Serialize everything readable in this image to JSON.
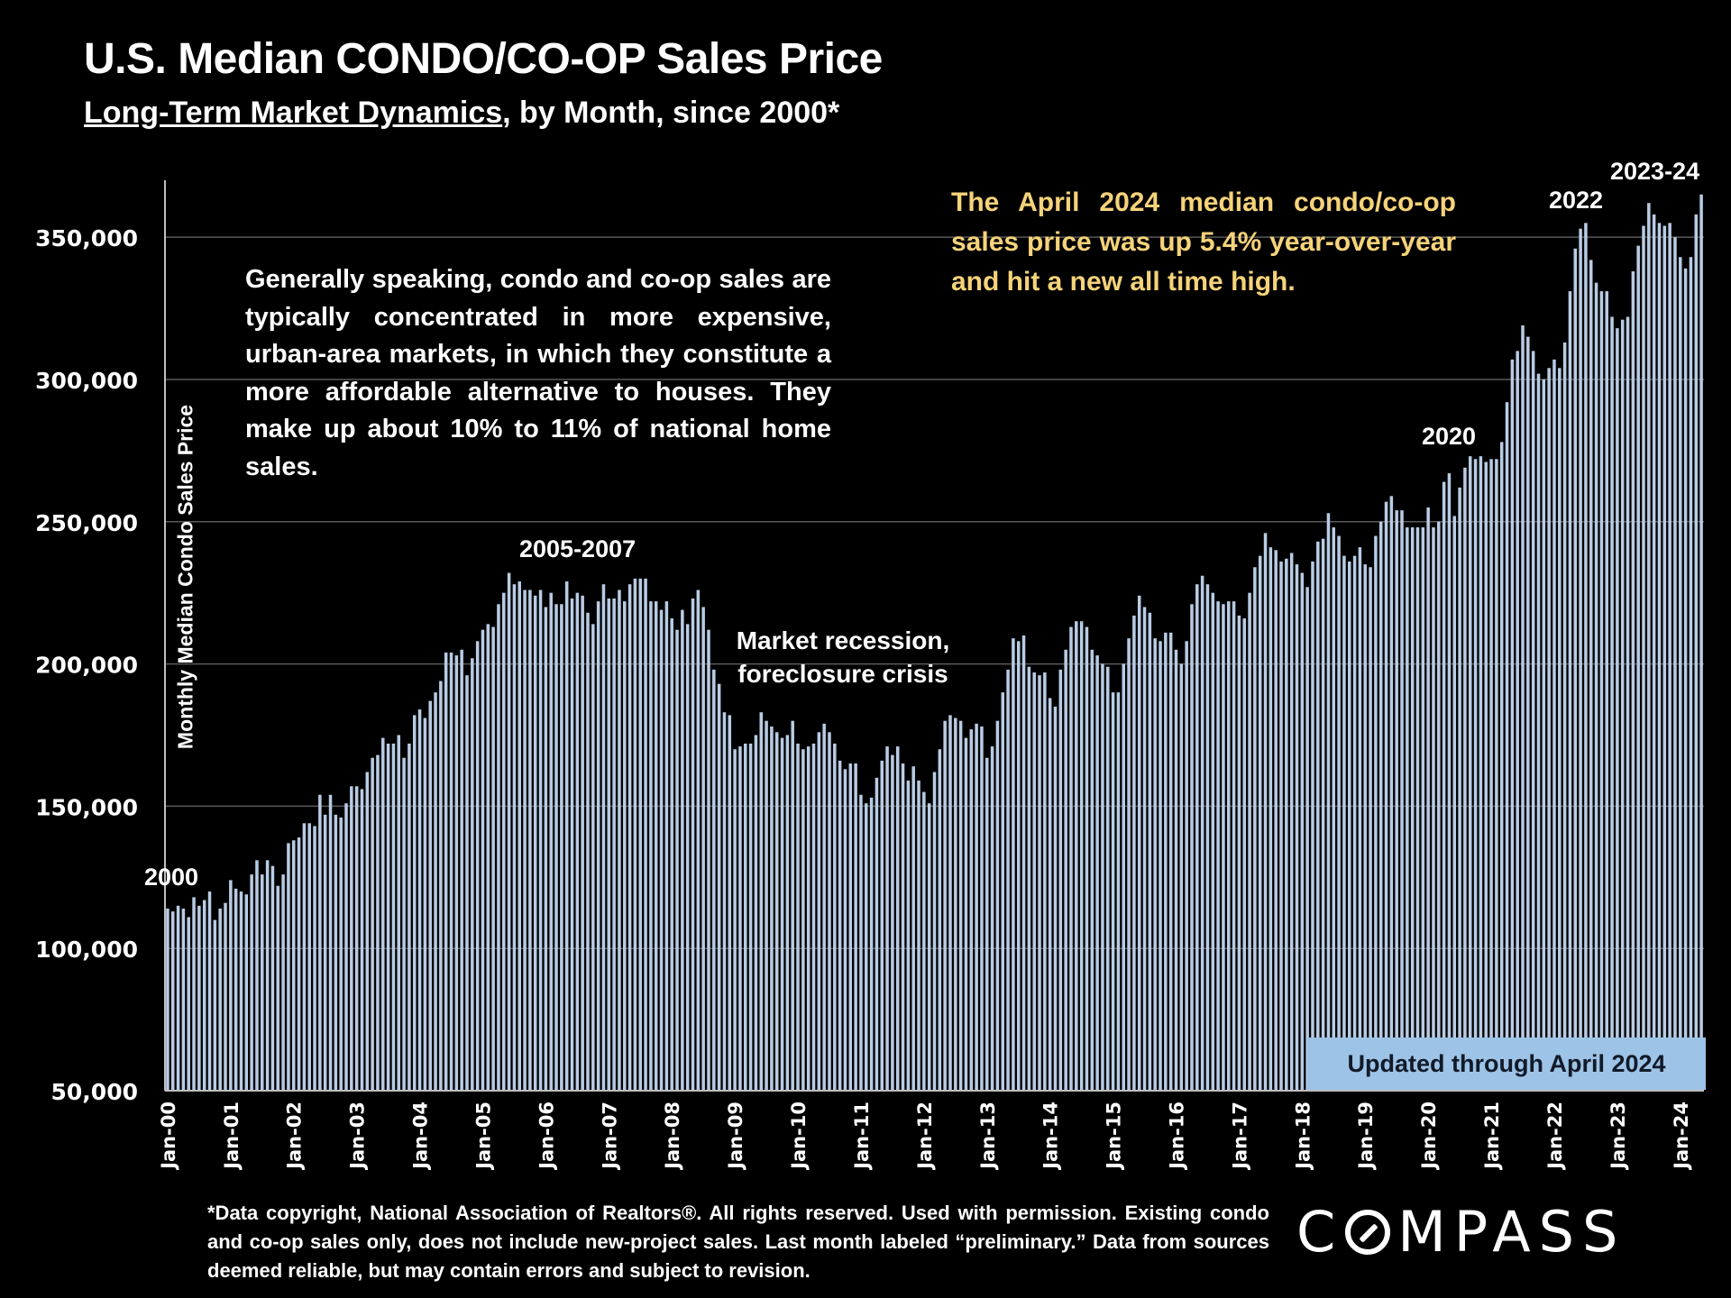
{
  "header": {
    "title": "U.S. Median CONDO/CO-OP Sales Price",
    "subtitle_underlined": "Long-Term Market Dynamics",
    "subtitle_rest": ", by Month, since 2000*"
  },
  "note": "Generally speaking, condo and co-op sales are typically concentrated in more expensive, urban-area markets, in which they constitute a more affordable alternative to houses. They make up about 10% to 11% of national home sales.",
  "callout": "The April 2024 median condo/co-op sales price was up 5.4% year-over-year and hit a new all time high.",
  "badge": "Updated through April 2024",
  "footnote": "*Data copyright, National Association of Realtors®. All rights reserved. Used with permission. Existing condo and co-op sales only, does  not include new-project sales. Last month labeled “preliminary.” Data from sources deemed reliable, but may contain errors and subject to revision.",
  "logo": {
    "before": "C",
    "after": "MPASS"
  },
  "colors": {
    "bar": "#b8cce4",
    "callout": "#f5d37a",
    "badge": "#9dc3e6",
    "grid": "#595959"
  },
  "chart_data": {
    "type": "bar",
    "title": "U.S. Median CONDO/CO-OP Sales Price",
    "xlabel": "",
    "ylabel": "Monthly Median Condo Sales Price",
    "ylim": [
      50000,
      370000
    ],
    "yticks": [
      "50,000",
      "100,000",
      "150,000",
      "200,000",
      "250,000",
      "300,000",
      "350,000"
    ],
    "ytick_values": [
      50000,
      100000,
      150000,
      200000,
      250000,
      300000,
      350000
    ],
    "grid": true,
    "start": "Jan-2000",
    "end": "Apr-2024",
    "xtick_labels": [
      "Jan-00",
      "Jan-01",
      "Jan-02",
      "Jan-03",
      "Jan-04",
      "Jan-05",
      "Jan-06",
      "Jan-07",
      "Jan-08",
      "Jan-09",
      "Jan-10",
      "Jan-11",
      "Jan-12",
      "Jan-13",
      "Jan-14",
      "Jan-15",
      "Jan-16",
      "Jan-17",
      "Jan-18",
      "Jan-19",
      "Jan-20",
      "Jan-21",
      "Jan-22",
      "Jan-23",
      "Jan-24"
    ],
    "annotations": [
      {
        "text": "2000",
        "month_index": 0
      },
      {
        "text": "2005-2007",
        "month_index": 76
      },
      {
        "text": "Market recession,",
        "month_index": 119
      },
      {
        "text": "foreclosure crisis",
        "month_index": 119
      },
      {
        "text": "2020",
        "month_index": 238
      },
      {
        "text": "2022",
        "month_index": 270
      },
      {
        "text": "2023-24",
        "month_index": 288
      }
    ],
    "values": [
      114000,
      113000,
      115000,
      114000,
      111000,
      118000,
      115000,
      117000,
      120000,
      110000,
      114000,
      116000,
      124000,
      121000,
      120000,
      119000,
      126000,
      131000,
      126000,
      131000,
      129000,
      122000,
      126000,
      137000,
      138000,
      139000,
      144000,
      144000,
      143000,
      154000,
      147000,
      154000,
      147000,
      146000,
      151000,
      157000,
      157000,
      156000,
      162000,
      167000,
      168000,
      174000,
      172000,
      172000,
      175000,
      167000,
      172000,
      182000,
      184000,
      181000,
      187000,
      190000,
      194000,
      204000,
      204000,
      203000,
      205000,
      196000,
      202000,
      208000,
      212000,
      214000,
      213000,
      221000,
      225000,
      232000,
      228000,
      229000,
      226000,
      226000,
      224000,
      226000,
      220000,
      225000,
      221000,
      221000,
      229000,
      223000,
      225000,
      224000,
      218000,
      214000,
      222000,
      228000,
      223000,
      223000,
      226000,
      222000,
      228000,
      230000,
      230000,
      230000,
      222000,
      222000,
      219000,
      222000,
      216000,
      212000,
      219000,
      214000,
      223000,
      226000,
      220000,
      212000,
      198000,
      193000,
      183000,
      182000,
      170000,
      171000,
      172000,
      172000,
      175000,
      183000,
      180000,
      178000,
      176000,
      174000,
      175000,
      180000,
      172000,
      170000,
      171000,
      172000,
      176000,
      179000,
      176000,
      172000,
      166000,
      163000,
      165000,
      165000,
      154000,
      151000,
      153000,
      160000,
      166000,
      171000,
      168000,
      171000,
      165000,
      159000,
      164000,
      159000,
      155000,
      151000,
      162000,
      170000,
      180000,
      182000,
      181000,
      180000,
      174000,
      177000,
      179000,
      178000,
      167000,
      171000,
      180000,
      190000,
      198000,
      209000,
      208000,
      210000,
      199000,
      197000,
      196000,
      197000,
      188000,
      185000,
      198000,
      205000,
      213000,
      215000,
      215000,
      213000,
      205000,
      203000,
      200000,
      199000,
      190000,
      190000,
      200000,
      209000,
      217000,
      224000,
      220000,
      218000,
      209000,
      208000,
      211000,
      211000,
      205000,
      200000,
      208000,
      221000,
      228000,
      231000,
      228000,
      225000,
      222000,
      221000,
      222000,
      222000,
      217000,
      216000,
      225000,
      234000,
      238000,
      246000,
      241000,
      240000,
      236000,
      237000,
      239000,
      235000,
      232000,
      227000,
      236000,
      243000,
      244000,
      253000,
      248000,
      245000,
      238000,
      236000,
      238000,
      241000,
      235000,
      234000,
      245000,
      250000,
      257000,
      259000,
      254000,
      254000,
      248000,
      248000,
      248000,
      248000,
      255000,
      248000,
      250000,
      264000,
      267000,
      252000,
      262000,
      269000,
      273000,
      272000,
      273000,
      271000,
      272000,
      272000,
      278000,
      292000,
      307000,
      310000,
      319000,
      315000,
      310000,
      302000,
      300000,
      304000,
      307000,
      304000,
      313000,
      331000,
      346000,
      353000,
      355000,
      342000,
      334000,
      331000,
      331000,
      322000,
      318000,
      321000,
      322000,
      338000,
      347000,
      354000,
      362000,
      358000,
      355000,
      354000,
      355000,
      350000,
      343000,
      339000,
      343000,
      358000,
      365000
    ]
  }
}
